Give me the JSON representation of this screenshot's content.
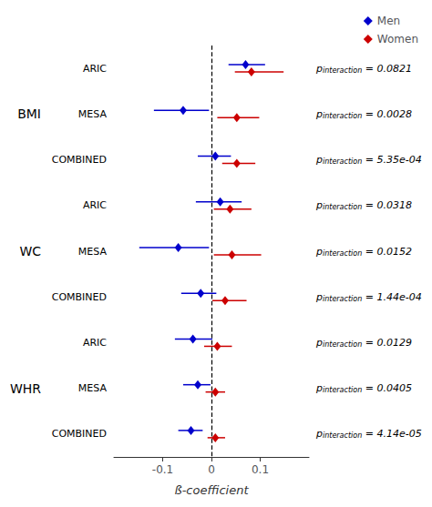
{
  "chart_data": {
    "type": "forest",
    "xlabel": "ß-coefficient",
    "xlim": [
      -0.2,
      0.2
    ],
    "xticks": [
      -0.1,
      0.0,
      0.1
    ],
    "grid": false,
    "legend": "upper right",
    "marker": "diamond",
    "reference_line": 0.0,
    "p_label": "p",
    "p_subscript": "interaction",
    "groups": [
      {
        "name": "BMI",
        "categories": [
          "ARIC",
          "MESA",
          "COMBINED"
        ],
        "p_values": [
          "= 0.0821",
          "= 0.0028",
          "= 5.35e-04"
        ]
      },
      {
        "name": "WC",
        "categories": [
          "ARIC",
          "MESA",
          "COMBINED"
        ],
        "p_values": [
          "= 0.0318",
          "= 0.0152",
          "= 1.44e-04"
        ]
      },
      {
        "name": "WHR",
        "categories": [
          "ARIC",
          "MESA",
          "COMBINED"
        ],
        "p_values": [
          "= 0.0129",
          "= 0.0405",
          "= 4.14e-05"
        ]
      }
    ],
    "series": [
      {
        "name": "Men",
        "color": "#0000cc",
        "values": [
          0.07,
          -0.058,
          0.008,
          0.018,
          -0.068,
          -0.022,
          -0.038,
          -0.028,
          -0.042
        ],
        "lower": [
          0.035,
          -0.118,
          -0.028,
          -0.032,
          -0.148,
          -0.062,
          -0.075,
          -0.058,
          -0.068
        ],
        "upper": [
          0.11,
          -0.005,
          0.04,
          0.062,
          -0.005,
          0.01,
          0.002,
          -0.002,
          -0.018
        ]
      },
      {
        "name": "Women",
        "color": "#cc0000",
        "values": [
          0.082,
          0.052,
          0.052,
          0.038,
          0.042,
          0.028,
          0.012,
          0.008,
          0.008
        ],
        "lower": [
          0.048,
          0.012,
          0.022,
          0.005,
          0.005,
          0.002,
          -0.015,
          -0.012,
          -0.008
        ],
        "upper": [
          0.148,
          0.098,
          0.09,
          0.082,
          0.102,
          0.072,
          0.042,
          0.028,
          0.028
        ]
      }
    ]
  }
}
